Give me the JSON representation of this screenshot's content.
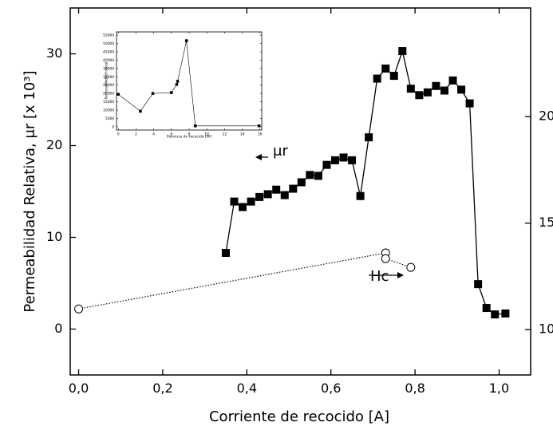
{
  "chart_data": [
    {
      "type": "line",
      "x_label": "Corriente de recocido [A]",
      "y_label": "Permeabilidad Relativa, μr [x 10³]",
      "xlim": [
        -0.02,
        1.075
      ],
      "xticks": [
        {
          "value": 0,
          "label": "0,0"
        },
        {
          "value": 0.2,
          "label": "0,2"
        },
        {
          "value": 0.4,
          "label": "0,4"
        },
        {
          "value": 0.6,
          "label": "0,6"
        },
        {
          "value": 0.8,
          "label": "0,8"
        },
        {
          "value": 1.0,
          "label": "1,0"
        }
      ],
      "ylim": [
        -5,
        35
      ],
      "yticks": [
        0,
        10,
        20,
        30
      ],
      "y2lim": [
        7.87,
        25.1
      ],
      "y2ticks": [
        10,
        15,
        20
      ],
      "annotations": [
        "μr",
        "Hc"
      ],
      "series": [
        {
          "name": "μr",
          "color": "#000000",
          "marker": "square",
          "line": "solid",
          "x": [
            0.35,
            0.37,
            0.39,
            0.41,
            0.43,
            0.45,
            0.47,
            0.49,
            0.51,
            0.53,
            0.55,
            0.57,
            0.59,
            0.61,
            0.63,
            0.65,
            0.67,
            0.69,
            0.71,
            0.73,
            0.75,
            0.77,
            0.79,
            0.81,
            0.83,
            0.85,
            0.87,
            0.89,
            0.91,
            0.93,
            0.95,
            0.97,
            0.99,
            1.015
          ],
          "values": [
            8.3,
            13.9,
            13.3,
            13.9,
            14.4,
            14.7,
            15.2,
            14.6,
            15.3,
            16.0,
            16.8,
            16.7,
            17.9,
            18.4,
            18.7,
            18.4,
            14.5,
            20.9,
            27.3,
            28.4,
            27.6,
            30.3,
            26.2,
            25.5,
            25.8,
            26.5,
            26.0,
            27.1,
            26.1,
            24.6,
            4.9,
            2.3,
            1.6,
            1.7
          ]
        },
        {
          "name": "Hc",
          "color": "#000000",
          "marker": "circle",
          "line": "dotted",
          "axis": "y2",
          "x": [
            0.0,
            0.73,
            0.73,
            0.79
          ],
          "values": [
            10.97,
            13.6,
            13.33,
            12.92
          ]
        }
      ]
    },
    {
      "type": "line",
      "x_label": "Potencia de recocido [W]",
      "y_label": "Permeabilidad Inicial",
      "xlim": [
        -0.2,
        16.2
      ],
      "xticks": [
        0,
        2,
        4,
        6,
        8,
        10,
        12,
        14,
        16
      ],
      "ylim": [
        -2000,
        57000
      ],
      "yticks": [
        0,
        5000,
        10000,
        15000,
        20000,
        25000,
        30000,
        35000,
        40000,
        45000,
        50000,
        55000
      ],
      "series": [
        {
          "color": "#000000",
          "marker": "square",
          "line": "solid",
          "x": [
            0,
            2.5,
            3.9,
            6.0,
            6.6,
            6.7,
            7.7,
            8.7,
            15.9
          ],
          "values": [
            19500,
            9300,
            20000,
            20500,
            25400,
            27300,
            51700,
            500,
            500
          ]
        }
      ]
    }
  ]
}
